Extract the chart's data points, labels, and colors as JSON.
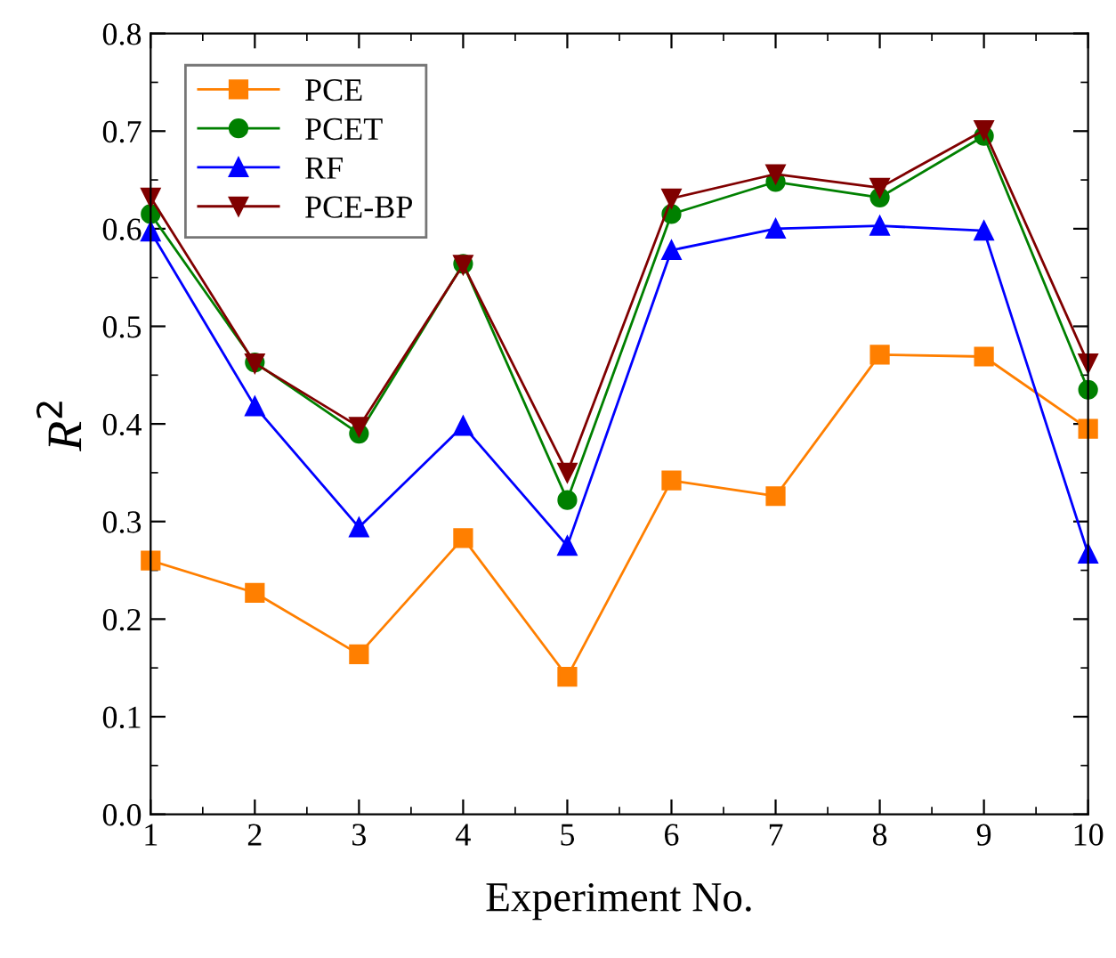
{
  "chart_data": {
    "type": "line",
    "xlabel": "Experiment No.",
    "ylabel": "R$^{2}$",
    "x": [
      1,
      2,
      3,
      4,
      5,
      6,
      7,
      8,
      9,
      10
    ],
    "xlim": [
      1,
      10
    ],
    "xticks": [
      1,
      2,
      3,
      4,
      5,
      6,
      7,
      8,
      9,
      10
    ],
    "ylim": [
      0,
      0.8
    ],
    "yticks": [
      {
        "value": 0,
        "label": "0.0"
      },
      {
        "value": 0.1,
        "label": "0.1"
      },
      {
        "value": 0.2,
        "label": "0.2"
      },
      {
        "value": 0.3,
        "label": "0.3"
      },
      {
        "value": 0.4,
        "label": "0.4"
      },
      {
        "value": 0.5,
        "label": "0.5"
      },
      {
        "value": 0.6,
        "label": "0.6"
      },
      {
        "value": 0.7,
        "label": "0.7"
      },
      {
        "value": 0.8,
        "label": "0.8"
      }
    ],
    "grid": false,
    "legend": "top left",
    "series": [
      {
        "name": "PCE",
        "color": "#ff7f00",
        "marker": "square",
        "values": [
          0.26,
          0.227,
          0.164,
          0.283,
          0.141,
          0.342,
          0.326,
          0.471,
          0.469,
          0.395
        ]
      },
      {
        "name": "PCET",
        "color": "#008000",
        "marker": "circle",
        "values": [
          0.615,
          0.463,
          0.39,
          0.564,
          0.322,
          0.615,
          0.648,
          0.632,
          0.695,
          0.435
        ]
      },
      {
        "name": "RF",
        "color": "#0000ff",
        "marker": "triangle",
        "values": [
          0.597,
          0.418,
          0.294,
          0.398,
          0.275,
          0.578,
          0.6,
          0.603,
          0.598,
          0.267
        ]
      },
      {
        "name": "PCE-BP",
        "color": "#800000",
        "marker": "triangle_down",
        "values": [
          0.632,
          0.462,
          0.397,
          0.563,
          0.35,
          0.631,
          0.656,
          0.642,
          0.701,
          0.462
        ]
      }
    ]
  }
}
